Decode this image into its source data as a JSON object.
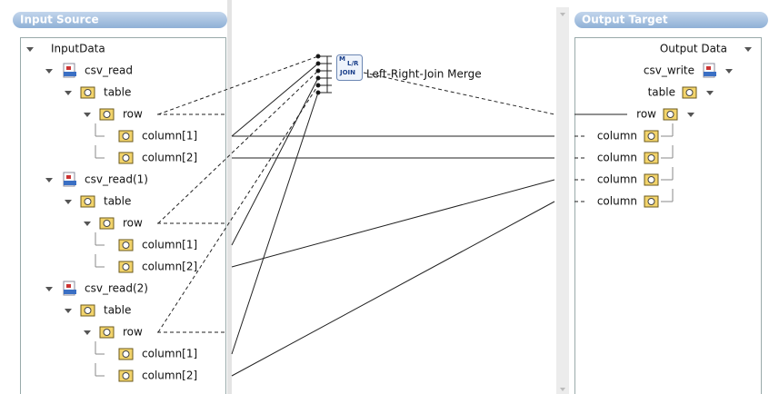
{
  "input_panel": {
    "title": "Input Source",
    "tree": {
      "label": "InputData",
      "children": [
        {
          "label": "csv_read",
          "children": [
            {
              "label": "table",
              "children": [
                {
                  "label": "row",
                  "children": [
                    {
                      "label": "column[1]"
                    },
                    {
                      "label": "column[2]"
                    }
                  ]
                }
              ]
            }
          ]
        },
        {
          "label": "csv_read(1)",
          "children": [
            {
              "label": "table",
              "children": [
                {
                  "label": "row",
                  "children": [
                    {
                      "label": "column[1]"
                    },
                    {
                      "label": "column[2]"
                    }
                  ]
                }
              ]
            }
          ]
        },
        {
          "label": "csv_read(2)",
          "children": [
            {
              "label": "table",
              "children": [
                {
                  "label": "row",
                  "children": [
                    {
                      "label": "column[1]"
                    },
                    {
                      "label": "column[2]"
                    }
                  ]
                }
              ]
            }
          ]
        }
      ]
    }
  },
  "output_panel": {
    "title": "Output Target",
    "tree": {
      "label": "Output Data",
      "children": [
        {
          "label": "csv_write",
          "children": [
            {
              "label": "table",
              "children": [
                {
                  "label": "row",
                  "children": [
                    {
                      "label": "column"
                    },
                    {
                      "label": "column"
                    },
                    {
                      "label": "column"
                    },
                    {
                      "label": "column"
                    }
                  ]
                }
              ]
            }
          ]
        }
      ]
    }
  },
  "merge": {
    "label": "Left-Right-Join Merge",
    "icon": {
      "top": "M",
      "middle": "L/R",
      "bottom": "JOIN"
    }
  }
}
